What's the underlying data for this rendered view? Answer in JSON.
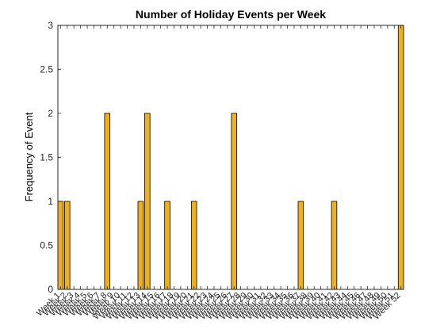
{
  "chart_data": {
    "type": "bar",
    "title": "Number of Holiday Events per Week",
    "xlabel": "",
    "ylabel": "Frequency of Event",
    "ylim": [
      0,
      3
    ],
    "yticks": [
      0,
      0.5,
      1,
      1.5,
      2,
      2.5,
      3
    ],
    "ytick_labels": [
      "0",
      "0.5",
      "1",
      "1.5",
      "2",
      "2.5",
      "3"
    ],
    "bar_color": "#EDB120",
    "grid": false,
    "categories": [
      "Week 1",
      "Week 2",
      "Week 3",
      "Week 4",
      "Week 5",
      "Week 6",
      "Week 7",
      "Week 8",
      "Week 9",
      "Week 10",
      "Week 11",
      "Week 12",
      "Week 13",
      "Week 14",
      "Week 15",
      "Week 16",
      "Week 17",
      "Week 18",
      "Week 19",
      "Week 20",
      "Week 21",
      "Week 22",
      "Week 23",
      "Week 24",
      "Week 25",
      "Week 26",
      "Week 27",
      "Week 28",
      "Week 29",
      "Week 30",
      "Week 31",
      "Week 32",
      "Week 33",
      "Week 34",
      "Week 35",
      "Week 36",
      "Week 37",
      "Week 38",
      "Week 39",
      "Week 40",
      "Week 41",
      "Week 42",
      "Week 43",
      "Week 44",
      "Week 45",
      "Week 46",
      "Week 47",
      "Week 48",
      "Week 49",
      "Week 50",
      "Week 51",
      "Week 52"
    ],
    "values": [
      1,
      1,
      0,
      0,
      0,
      0,
      0,
      2,
      0,
      0,
      0,
      0,
      1,
      2,
      0,
      0,
      1,
      0,
      0,
      0,
      1,
      0,
      0,
      0,
      0,
      0,
      2,
      0,
      0,
      0,
      0,
      0,
      0,
      0,
      0,
      0,
      1,
      0,
      0,
      0,
      0,
      1,
      0,
      0,
      0,
      0,
      0,
      0,
      0,
      0,
      0,
      3
    ],
    "xtick_labels": [
      "Week 1",
      "Week 2",
      "Week 3",
      "Week 4",
      "Week 5",
      "Week 6",
      "Week 7",
      "Week 8",
      "Week 9",
      "Week 10",
      "Week 11",
      "Week 12",
      "Week 13",
      "Week 14",
      "Week 15",
      "Week 16",
      "Week 17",
      "Week 18",
      "Week 19",
      "Week 20",
      "Week 21",
      "Week 22",
      "Week 23",
      "Week 24",
      "Week 25",
      "Week 26",
      "Week 27",
      "Week 28",
      "Week 29",
      "Week 30",
      "Week 31",
      "Week 32",
      "Week 33",
      "Week 34",
      "Week 35",
      "Week 36",
      "Week 37",
      "Week 38",
      "Week 39",
      "Week 40",
      "Week 41",
      "Week 42",
      "Week 43",
      "Week 44",
      "Week 45",
      "Week 46",
      "Week 47",
      "Week 48",
      "Week 49",
      "Week 50",
      "Week 51",
      "Week 52"
    ]
  }
}
